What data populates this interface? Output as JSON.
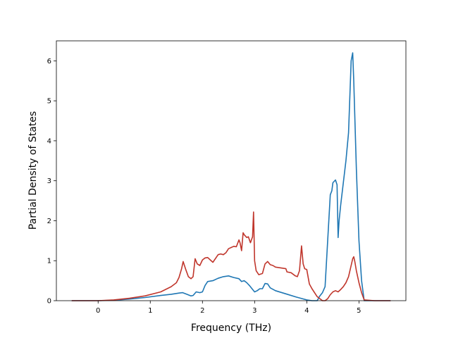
{
  "chart_data": {
    "type": "line",
    "title": "",
    "xlabel": "Frequency (THz)",
    "ylabel": "Partial Density of States",
    "xlim": [
      -0.8,
      5.9
    ],
    "ylim": [
      0,
      6.5
    ],
    "xticks": [
      0,
      1,
      2,
      3,
      4,
      5
    ],
    "yticks": [
      0,
      1,
      2,
      3,
      4,
      5,
      6
    ],
    "grid": false,
    "legend": "none",
    "series": [
      {
        "color": "#1f77b4",
        "x": [
          -0.5,
          0.0,
          0.3,
          0.6,
          0.9,
          1.2,
          1.4,
          1.55,
          1.62,
          1.7,
          1.78,
          1.82,
          1.88,
          1.95,
          2.0,
          2.05,
          2.1,
          2.2,
          2.3,
          2.4,
          2.5,
          2.6,
          2.7,
          2.75,
          2.8,
          2.85,
          2.9,
          2.95,
          3.0,
          3.05,
          3.1,
          3.15,
          3.2,
          3.25,
          3.3,
          3.4,
          3.6,
          3.8,
          4.0,
          4.1,
          4.2,
          4.25,
          4.3,
          4.35,
          4.4,
          4.45,
          4.48,
          4.5,
          4.55,
          4.58,
          4.6,
          4.62,
          4.65,
          4.7,
          4.75,
          4.8,
          4.85,
          4.88,
          4.9,
          4.95,
          5.0,
          5.05,
          5.1,
          5.3,
          5.6
        ],
        "y": [
          0.0,
          0.0,
          0.01,
          0.04,
          0.08,
          0.13,
          0.16,
          0.19,
          0.2,
          0.16,
          0.12,
          0.13,
          0.22,
          0.2,
          0.22,
          0.38,
          0.48,
          0.5,
          0.56,
          0.6,
          0.62,
          0.58,
          0.55,
          0.48,
          0.5,
          0.45,
          0.38,
          0.3,
          0.22,
          0.25,
          0.3,
          0.3,
          0.43,
          0.42,
          0.32,
          0.25,
          0.17,
          0.09,
          0.02,
          0.0,
          0.0,
          0.12,
          0.2,
          0.35,
          1.5,
          2.65,
          2.75,
          2.95,
          3.02,
          2.9,
          1.58,
          2.0,
          2.4,
          2.95,
          3.5,
          4.2,
          6.0,
          6.2,
          5.5,
          3.3,
          1.5,
          0.5,
          0.0,
          0.0,
          0.0
        ]
      },
      {
        "color": "#c0362c",
        "x": [
          -0.5,
          0.0,
          0.3,
          0.6,
          0.9,
          1.2,
          1.4,
          1.5,
          1.55,
          1.6,
          1.63,
          1.68,
          1.73,
          1.78,
          1.82,
          1.86,
          1.9,
          1.95,
          2.0,
          2.05,
          2.1,
          2.15,
          2.2,
          2.3,
          2.35,
          2.4,
          2.45,
          2.5,
          2.55,
          2.6,
          2.65,
          2.7,
          2.72,
          2.75,
          2.78,
          2.8,
          2.85,
          2.88,
          2.92,
          2.96,
          2.98,
          3.0,
          3.03,
          3.08,
          3.15,
          3.2,
          3.25,
          3.3,
          3.35,
          3.4,
          3.5,
          3.6,
          3.62,
          3.7,
          3.78,
          3.82,
          3.86,
          3.9,
          3.93,
          3.96,
          4.0,
          4.05,
          4.1,
          4.2,
          4.3,
          4.35,
          4.4,
          4.45,
          4.5,
          4.55,
          4.6,
          4.65,
          4.7,
          4.75,
          4.8,
          4.85,
          4.88,
          4.9,
          4.92,
          4.95,
          5.0,
          5.05,
          5.1,
          5.3,
          5.6
        ],
        "y": [
          0.0,
          0.0,
          0.02,
          0.06,
          0.12,
          0.22,
          0.35,
          0.45,
          0.58,
          0.8,
          0.98,
          0.78,
          0.6,
          0.55,
          0.6,
          1.05,
          0.92,
          0.88,
          1.02,
          1.07,
          1.08,
          1.02,
          0.96,
          1.15,
          1.17,
          1.15,
          1.2,
          1.3,
          1.33,
          1.36,
          1.35,
          1.52,
          1.45,
          1.25,
          1.7,
          1.65,
          1.58,
          1.6,
          1.45,
          1.6,
          2.22,
          1.0,
          0.75,
          0.65,
          0.68,
          0.92,
          0.98,
          0.9,
          0.88,
          0.84,
          0.82,
          0.8,
          0.72,
          0.7,
          0.62,
          0.6,
          0.75,
          1.37,
          0.92,
          0.8,
          0.78,
          0.42,
          0.3,
          0.1,
          0.0,
          0.0,
          0.05,
          0.15,
          0.22,
          0.25,
          0.22,
          0.28,
          0.35,
          0.45,
          0.6,
          0.88,
          1.05,
          1.1,
          0.98,
          0.75,
          0.45,
          0.2,
          0.02,
          0.0,
          0.0
        ]
      }
    ]
  }
}
